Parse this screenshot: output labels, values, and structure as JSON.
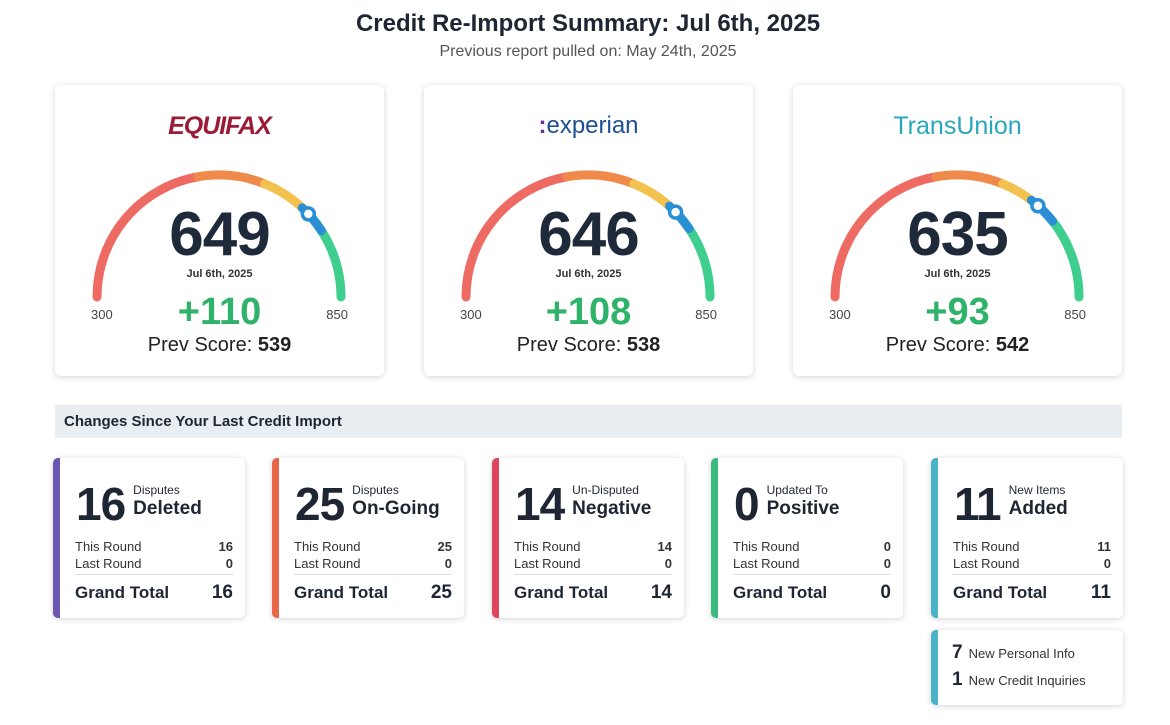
{
  "header": {
    "title": "Credit Re-Import Summary: Jul 6th, 2025",
    "subtitle": "Previous report pulled on: May 24th, 2025"
  },
  "gauge": {
    "min": 300,
    "max": 850,
    "colors": {
      "red": "#ee6b63",
      "orange": "#f08a4b",
      "yellow": "#f2c14e",
      "green": "#3ecf8e",
      "marker": "#2b8fd6"
    }
  },
  "bureaus": [
    {
      "name": "EQUIFAX",
      "score": 649,
      "date": "Jul 6th, 2025",
      "min": "300",
      "max": "850",
      "change": "+110",
      "prev_label": "Prev Score:",
      "prev": "539"
    },
    {
      "name": "experian",
      "score": 646,
      "date": "Jul 6th, 2025",
      "min": "300",
      "max": "850",
      "change": "+108",
      "prev_label": "Prev Score:",
      "prev": "538"
    },
    {
      "name": "TransUnion",
      "score": 635,
      "date": "Jul 6th, 2025",
      "min": "300",
      "max": "850",
      "change": "+93",
      "prev_label": "Prev Score:",
      "prev": "542"
    }
  ],
  "section_title": "Changes Since Your Last Credit Import",
  "stats": [
    {
      "count": "16",
      "label1": "Disputes",
      "label2": "Deleted",
      "this_label": "This Round",
      "this": "16",
      "last_label": "Last Round",
      "last": "0",
      "total_label": "Grand Total",
      "total": "16",
      "color": "#6a56b0"
    },
    {
      "count": "25",
      "label1": "Disputes",
      "label2": "On-Going",
      "this_label": "This Round",
      "this": "25",
      "last_label": "Last Round",
      "last": "0",
      "total_label": "Grand Total",
      "total": "25",
      "color": "#e8664a"
    },
    {
      "count": "14",
      "label1": "Un-Disputed",
      "label2": "Negative",
      "this_label": "This Round",
      "this": "14",
      "last_label": "Last Round",
      "last": "0",
      "total_label": "Grand Total",
      "total": "14",
      "color": "#e0455e"
    },
    {
      "count": "0",
      "label1": "Updated To",
      "label2": "Positive",
      "this_label": "This Round",
      "this": "0",
      "last_label": "Last Round",
      "last": "0",
      "total_label": "Grand Total",
      "total": "0",
      "color": "#3dbb7e"
    },
    {
      "count": "11",
      "label1": "New Items",
      "label2": "Added",
      "this_label": "This Round",
      "this": "11",
      "last_label": "Last Round",
      "last": "0",
      "total_label": "Grand Total",
      "total": "11",
      "color": "#4ab3c8"
    }
  ],
  "extra": {
    "personal_count": "7",
    "personal_label": "New Personal Info",
    "inquiries_count": "1",
    "inquiries_label": "New Credit Inquiries"
  }
}
